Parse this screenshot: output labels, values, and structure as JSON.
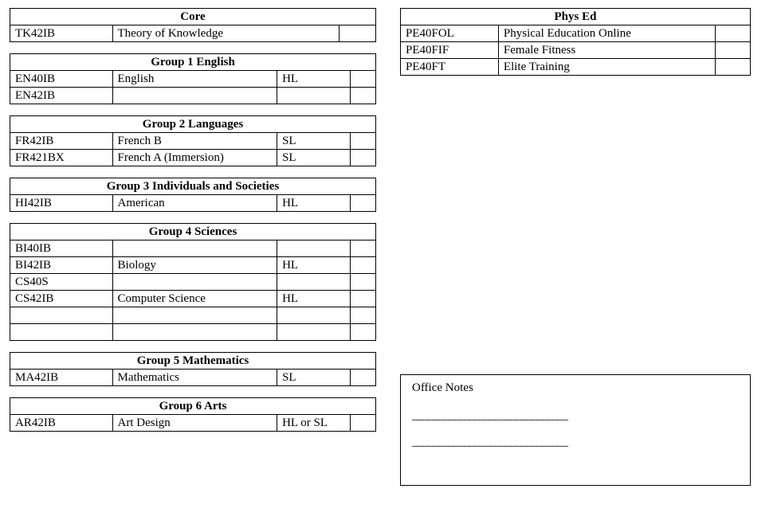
{
  "leftSections": [
    {
      "title": "Core",
      "columns": 3,
      "rows": [
        {
          "code": "TK42IB",
          "name": "Theory of Knowledge",
          "level": "",
          "mark": ""
        }
      ]
    },
    {
      "title": "Group 1 English",
      "columns": 4,
      "rows": [
        {
          "code": "EN40IB",
          "name": "English",
          "level": "HL",
          "mark": ""
        },
        {
          "code": "EN42IB",
          "name": "",
          "level": "",
          "mark": ""
        }
      ]
    },
    {
      "title": "Group 2 Languages",
      "columns": 4,
      "rows": [
        {
          "code": "FR42IB",
          "name": "French B",
          "level": "SL",
          "mark": ""
        },
        {
          "code": "FR421BX",
          "name": "French A (Immersion)",
          "level": "SL",
          "mark": ""
        }
      ]
    },
    {
      "title": "Group 3 Individuals and Societies",
      "columns": 4,
      "rows": [
        {
          "code": "HI42IB",
          "name": "American",
          "level": "HL",
          "mark": ""
        }
      ]
    },
    {
      "title": "Group 4 Sciences",
      "columns": 4,
      "rows": [
        {
          "code": "BI40IB",
          "name": "",
          "level": "",
          "mark": ""
        },
        {
          "code": "BI42IB",
          "name": "Biology",
          "level": "HL",
          "mark": ""
        },
        {
          "code": "CS40S",
          "name": "",
          "level": "",
          "mark": ""
        },
        {
          "code": "CS42IB",
          "name": "Computer Science",
          "level": "HL",
          "mark": ""
        },
        {
          "code": "",
          "name": "",
          "level": "",
          "mark": ""
        },
        {
          "code": "",
          "name": "",
          "level": "",
          "mark": ""
        }
      ]
    },
    {
      "title": "Group 5 Mathematics",
      "columns": 4,
      "rows": [
        {
          "code": "MA42IB",
          "name": "Mathematics",
          "level": "SL",
          "mark": ""
        }
      ]
    },
    {
      "title": "Group 6 Arts",
      "columns": 4,
      "rows": [
        {
          "code": "AR42IB",
          "name": "Art Design",
          "level": "HL or SL",
          "mark": ""
        }
      ]
    }
  ],
  "rightSections": [
    {
      "title": "Phys Ed",
      "columns": 3,
      "rows": [
        {
          "code": "PE40FOL",
          "name": "Physical Education Online",
          "mark": ""
        },
        {
          "code": "PE40FIF",
          "name": "Female Fitness",
          "mark": ""
        },
        {
          "code": "PE40FT",
          "name": "Elite Training",
          "mark": ""
        }
      ]
    }
  ],
  "officeNotes": {
    "title": "Office Notes",
    "line": "______________________________"
  }
}
